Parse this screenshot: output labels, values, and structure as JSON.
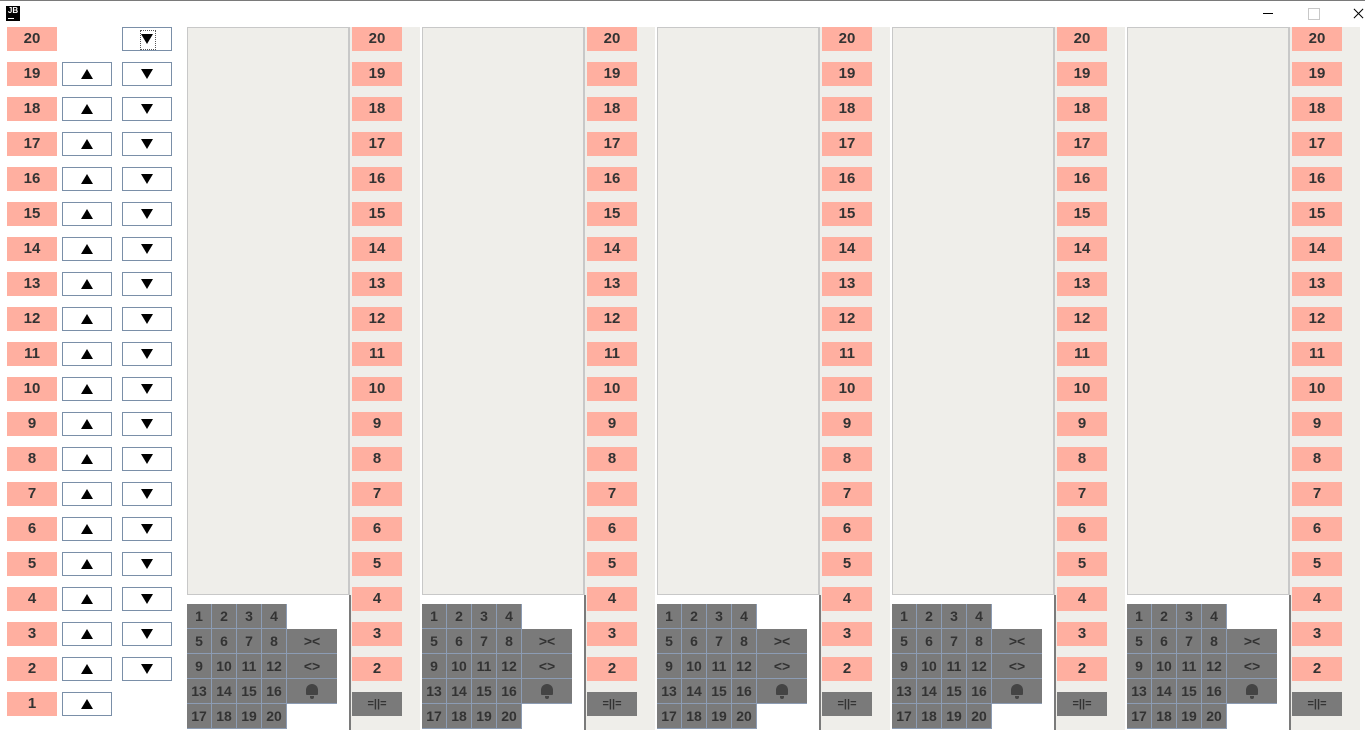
{
  "window": {
    "icon_text": "JB"
  },
  "left_panel": {
    "floors": [
      "20",
      "19",
      "18",
      "17",
      "16",
      "15",
      "14",
      "13",
      "12",
      "11",
      "10",
      "9",
      "8",
      "7",
      "6",
      "5",
      "4",
      "3",
      "2",
      "1"
    ],
    "up_symbol": "▲",
    "down_symbol": "▼"
  },
  "shafts": {
    "count": 5,
    "floor_labels": [
      "20",
      "19",
      "18",
      "17",
      "16",
      "15",
      "14",
      "13",
      "12",
      "11",
      "10",
      "9",
      "8",
      "7",
      "6",
      "5",
      "4",
      "3",
      "2"
    ],
    "keypad_keys": [
      "1",
      "2",
      "3",
      "4",
      "5",
      "6",
      "7",
      "8",
      "9",
      "10",
      "11",
      "12",
      "13",
      "14",
      "15",
      "16",
      "17",
      "18",
      "19",
      "20"
    ],
    "close_door_label": "><",
    "open_door_label": "<>",
    "alarm_icon": "bell-icon",
    "door_status_label": "=||="
  },
  "colors": {
    "floor_label_bg": "#ffafa0",
    "keypad_bg": "#7a7a7a",
    "shaft_bg": "#efeeea"
  }
}
